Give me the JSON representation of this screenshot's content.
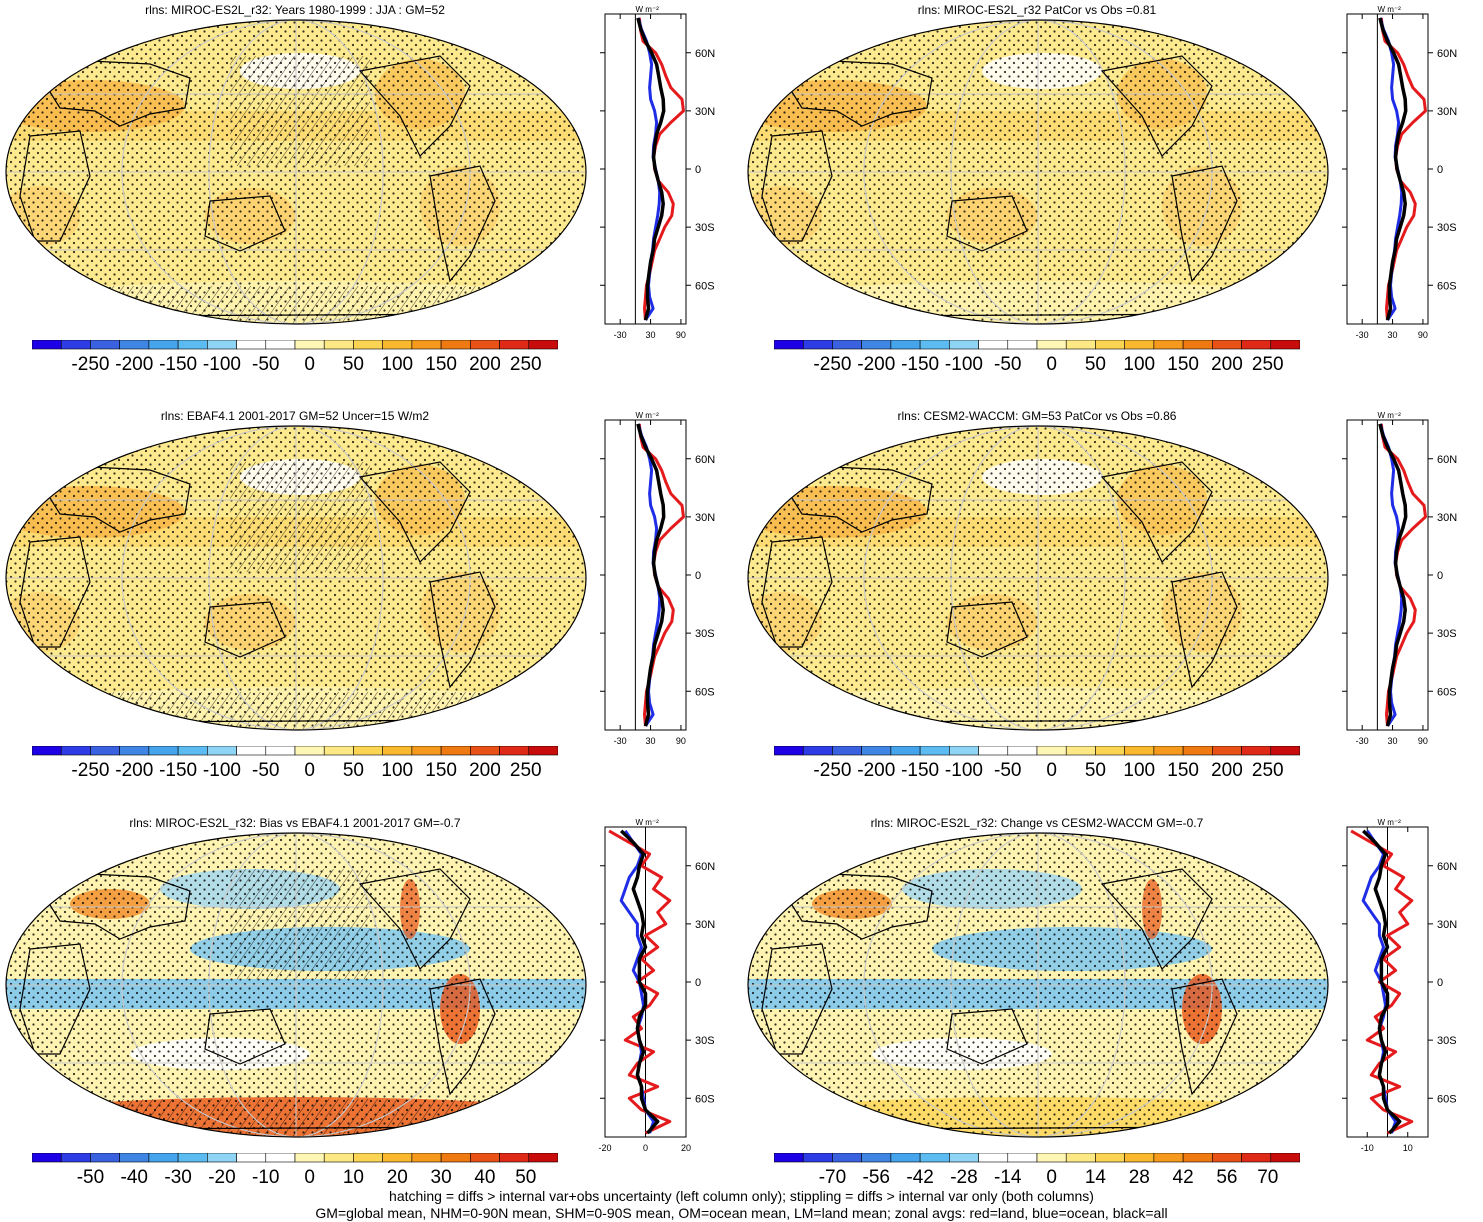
{
  "panels": [
    {
      "id": "p1",
      "title": "rlns: MIROC-ES2L_r32: Years 1980-1999 : JJA : GM=52",
      "cbar_labels": [
        "-250",
        "-200",
        "-150",
        "-100",
        "-50",
        "0",
        "50",
        "100",
        "150",
        "200",
        "250"
      ],
      "xticks": [
        "-30",
        "30",
        "90"
      ],
      "xrange": [
        -60,
        100
      ],
      "lat_labels": [
        "60N",
        "30N",
        "0",
        "30S",
        "60S"
      ],
      "units_label": "W m⁻²",
      "kind": "abs"
    },
    {
      "id": "p2",
      "title": "rlns: MIROC-ES2L_r32 PatCor vs Obs =0.81",
      "cbar_labels": [
        "-250",
        "-200",
        "-150",
        "-100",
        "-50",
        "0",
        "50",
        "100",
        "150",
        "200",
        "250"
      ],
      "xticks": [
        "-30",
        "30",
        "90"
      ],
      "xrange": [
        -60,
        100
      ],
      "lat_labels": [
        "60N",
        "30N",
        "0",
        "30S",
        "60S"
      ],
      "units_label": "W m⁻²",
      "kind": "abs"
    },
    {
      "id": "p3",
      "title": "rlns: EBAF4.1 2001-2017 GM=52 Uncer=15 W/m2",
      "cbar_labels": [
        "-250",
        "-200",
        "-150",
        "-100",
        "-50",
        "0",
        "50",
        "100",
        "150",
        "200",
        "250"
      ],
      "xticks": [
        "-30",
        "30",
        "90"
      ],
      "xrange": [
        -60,
        100
      ],
      "lat_labels": [
        "60N",
        "30N",
        "0",
        "30S",
        "60S"
      ],
      "units_label": "W m⁻²",
      "kind": "abs"
    },
    {
      "id": "p4",
      "title": "rlns: CESM2-WACCM: GM=53 PatCor vs Obs =0.86",
      "cbar_labels": [
        "-250",
        "-200",
        "-150",
        "-100",
        "-50",
        "0",
        "50",
        "100",
        "150",
        "200",
        "250"
      ],
      "xticks": [
        "-30",
        "30",
        "90"
      ],
      "xrange": [
        -60,
        100
      ],
      "lat_labels": [
        "60N",
        "30N",
        "0",
        "30S",
        "60S"
      ],
      "units_label": "W m⁻²",
      "kind": "abs"
    },
    {
      "id": "p5",
      "title": "rlns: MIROC-ES2L_r32: Bias vs EBAF4.1 2001-2017 GM=-0.7",
      "cbar_labels": [
        "-50",
        "-40",
        "-30",
        "-20",
        "-10",
        "0",
        "10",
        "20",
        "30",
        "40",
        "50"
      ],
      "xticks": [
        "-20",
        "0",
        "20"
      ],
      "xrange": [
        -20,
        20
      ],
      "lat_labels": [
        "60N",
        "30N",
        "0",
        "30S",
        "60S"
      ],
      "units_label": "W m⁻²",
      "kind": "diff"
    },
    {
      "id": "p6",
      "title": "rlns: MIROC-ES2L_r32: Change vs CESM2-WACCM GM=-0.7",
      "cbar_labels": [
        "-70",
        "-56",
        "-42",
        "-28",
        "-14",
        "0",
        "14",
        "28",
        "42",
        "56",
        "70"
      ],
      "xticks": [
        "-10",
        "10"
      ],
      "xrange": [
        -20,
        20
      ],
      "lat_labels": [
        "60N",
        "30N",
        "0",
        "30S",
        "60S"
      ],
      "units_label": "W m⁻²",
      "kind": "diff"
    }
  ],
  "footer": {
    "line1": "hatching = diffs > internal var+obs uncertainty (left column only); stippling = diffs > internal var only (both columns)",
    "line2": "GM=global mean, NHM=0-90N mean, SHM=0-90S mean, OM=ocean mean, LM=land mean; zonal avgs: red=land, blue=ocean, black=all"
  },
  "colors": {
    "colorbar": [
      "#1e00e6",
      "#2e3ce6",
      "#3a62e0",
      "#3f86e4",
      "#46a4ec",
      "#5cbcf2",
      "#8ed4f4",
      "#ffffff",
      "#ffffff",
      "#fef6b4",
      "#fde886",
      "#fcd454",
      "#f9b82e",
      "#f59a1c",
      "#f07a12",
      "#e85216",
      "#e02a18",
      "#c80c0c"
    ],
    "land": "#e41a1c",
    "ocean": "#1f2ee6",
    "all": "#000000"
  },
  "zonal_profiles": {
    "abs_land": [
      [
        78,
        8
      ],
      [
        72,
        10
      ],
      [
        66,
        15
      ],
      [
        60,
        40
      ],
      [
        54,
        52
      ],
      [
        48,
        60
      ],
      [
        42,
        70
      ],
      [
        36,
        92
      ],
      [
        30,
        95
      ],
      [
        24,
        70
      ],
      [
        18,
        48
      ],
      [
        12,
        40
      ],
      [
        6,
        36
      ],
      [
        0,
        38
      ],
      [
        -6,
        45
      ],
      [
        -12,
        65
      ],
      [
        -18,
        75
      ],
      [
        -24,
        72
      ],
      [
        -30,
        58
      ],
      [
        -36,
        48
      ],
      [
        -42,
        38
      ],
      [
        -48,
        33
      ],
      [
        -54,
        28
      ],
      [
        -60,
        22
      ],
      [
        -66,
        20
      ],
      [
        -72,
        18
      ],
      [
        -78,
        20
      ]
    ],
    "abs_ocean": [
      [
        78,
        6
      ],
      [
        72,
        12
      ],
      [
        66,
        22
      ],
      [
        60,
        28
      ],
      [
        54,
        32
      ],
      [
        48,
        30
      ],
      [
        42,
        28
      ],
      [
        36,
        30
      ],
      [
        30,
        38
      ],
      [
        24,
        42
      ],
      [
        18,
        40
      ],
      [
        12,
        36
      ],
      [
        6,
        35
      ],
      [
        0,
        40
      ],
      [
        -6,
        45
      ],
      [
        -12,
        48
      ],
      [
        -18,
        47
      ],
      [
        -24,
        44
      ],
      [
        -30,
        40
      ],
      [
        -36,
        36
      ],
      [
        -42,
        34
      ],
      [
        -48,
        30
      ],
      [
        -54,
        28
      ],
      [
        -60,
        26
      ],
      [
        -66,
        28
      ],
      [
        -72,
        35
      ],
      [
        -78,
        20
      ]
    ],
    "abs_all": [
      [
        78,
        5
      ],
      [
        72,
        11
      ],
      [
        66,
        20
      ],
      [
        60,
        32
      ],
      [
        54,
        42
      ],
      [
        48,
        46
      ],
      [
        42,
        50
      ],
      [
        36,
        55
      ],
      [
        30,
        56
      ],
      [
        24,
        50
      ],
      [
        18,
        42
      ],
      [
        12,
        38
      ],
      [
        6,
        36
      ],
      [
        0,
        39
      ],
      [
        -6,
        45
      ],
      [
        -12,
        52
      ],
      [
        -18,
        55
      ],
      [
        -24,
        52
      ],
      [
        -30,
        45
      ],
      [
        -36,
        38
      ],
      [
        -42,
        35
      ],
      [
        -48,
        30
      ],
      [
        -54,
        27
      ],
      [
        -60,
        24
      ],
      [
        -66,
        24
      ],
      [
        -72,
        26
      ],
      [
        -78,
        20
      ]
    ],
    "diff_land": [
      [
        78,
        -18
      ],
      [
        72,
        -8
      ],
      [
        66,
        2
      ],
      [
        60,
        -2
      ],
      [
        54,
        8
      ],
      [
        48,
        4
      ],
      [
        42,
        12
      ],
      [
        36,
        6
      ],
      [
        30,
        10
      ],
      [
        24,
        0
      ],
      [
        18,
        6
      ],
      [
        12,
        -2
      ],
      [
        6,
        4
      ],
      [
        0,
        -4
      ],
      [
        -6,
        6
      ],
      [
        -12,
        2
      ],
      [
        -18,
        -6
      ],
      [
        -24,
        -2
      ],
      [
        -30,
        -10
      ],
      [
        -36,
        4
      ],
      [
        -42,
        -4
      ],
      [
        -48,
        -8
      ],
      [
        -54,
        6
      ],
      [
        -60,
        -8
      ],
      [
        -66,
        -2
      ],
      [
        -72,
        12
      ],
      [
        -78,
        0
      ]
    ],
    "diff_ocean": [
      [
        78,
        -10
      ],
      [
        72,
        -6
      ],
      [
        66,
        -2
      ],
      [
        60,
        -4
      ],
      [
        54,
        -8
      ],
      [
        48,
        -10
      ],
      [
        42,
        -12
      ],
      [
        36,
        -8
      ],
      [
        30,
        -4
      ],
      [
        24,
        -4
      ],
      [
        18,
        -2
      ],
      [
        12,
        -4
      ],
      [
        6,
        -6
      ],
      [
        0,
        -3
      ],
      [
        -6,
        -2
      ],
      [
        -12,
        -1
      ],
      [
        -18,
        -2
      ],
      [
        -24,
        -4
      ],
      [
        -30,
        -3
      ],
      [
        -36,
        -2
      ],
      [
        -42,
        -3
      ],
      [
        -48,
        -4
      ],
      [
        -54,
        -2
      ],
      [
        -60,
        -1
      ],
      [
        -66,
        0
      ],
      [
        -72,
        4
      ],
      [
        -78,
        2
      ]
    ],
    "diff_all": [
      [
        78,
        -12
      ],
      [
        72,
        -6
      ],
      [
        66,
        -1
      ],
      [
        60,
        -3
      ],
      [
        54,
        -4
      ],
      [
        48,
        -6
      ],
      [
        42,
        -4
      ],
      [
        36,
        -2
      ],
      [
        30,
        -1
      ],
      [
        24,
        -2
      ],
      [
        18,
        0
      ],
      [
        12,
        -3
      ],
      [
        6,
        -3
      ],
      [
        0,
        -3
      ],
      [
        -6,
        0
      ],
      [
        -12,
        0
      ],
      [
        -18,
        -3
      ],
      [
        -24,
        -4
      ],
      [
        -30,
        -3
      ],
      [
        -36,
        -1
      ],
      [
        -42,
        -3
      ],
      [
        -48,
        -4
      ],
      [
        -54,
        -2
      ],
      [
        -60,
        -2
      ],
      [
        -66,
        0
      ],
      [
        -72,
        6
      ],
      [
        -78,
        1
      ]
    ]
  }
}
